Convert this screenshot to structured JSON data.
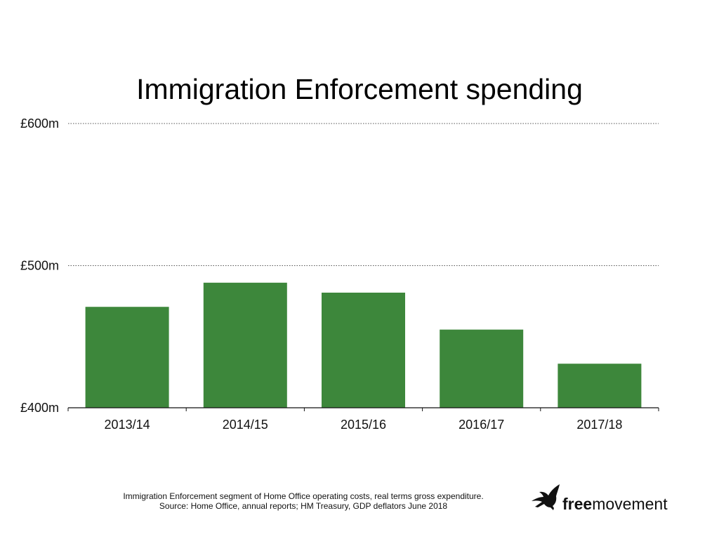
{
  "chart_data": {
    "type": "bar",
    "title": "Immigration Enforcement spending",
    "categories": [
      "2013/14",
      "2014/15",
      "2015/16",
      "2016/17",
      "2017/18"
    ],
    "values": [
      471,
      488,
      481,
      455,
      431
    ],
    "unit": "£m",
    "ylim": [
      400,
      600
    ],
    "yticks": [
      400,
      500,
      600
    ],
    "ytick_labels": [
      "£400m",
      "£500m",
      "£600m"
    ],
    "xlabel": "",
    "ylabel": "",
    "grid": "horizontal dotted",
    "bar_color": "#3d873b"
  },
  "caption": {
    "line1": "Immigration Enforcement segment of Home Office operating costs, real terms gross expenditure.",
    "line2": "Source: Home Office, annual reports; HM Treasury, GDP deflators June 2018"
  },
  "logo": {
    "text_bold": "free",
    "text_regular": "movement",
    "icon": "heron-icon"
  }
}
